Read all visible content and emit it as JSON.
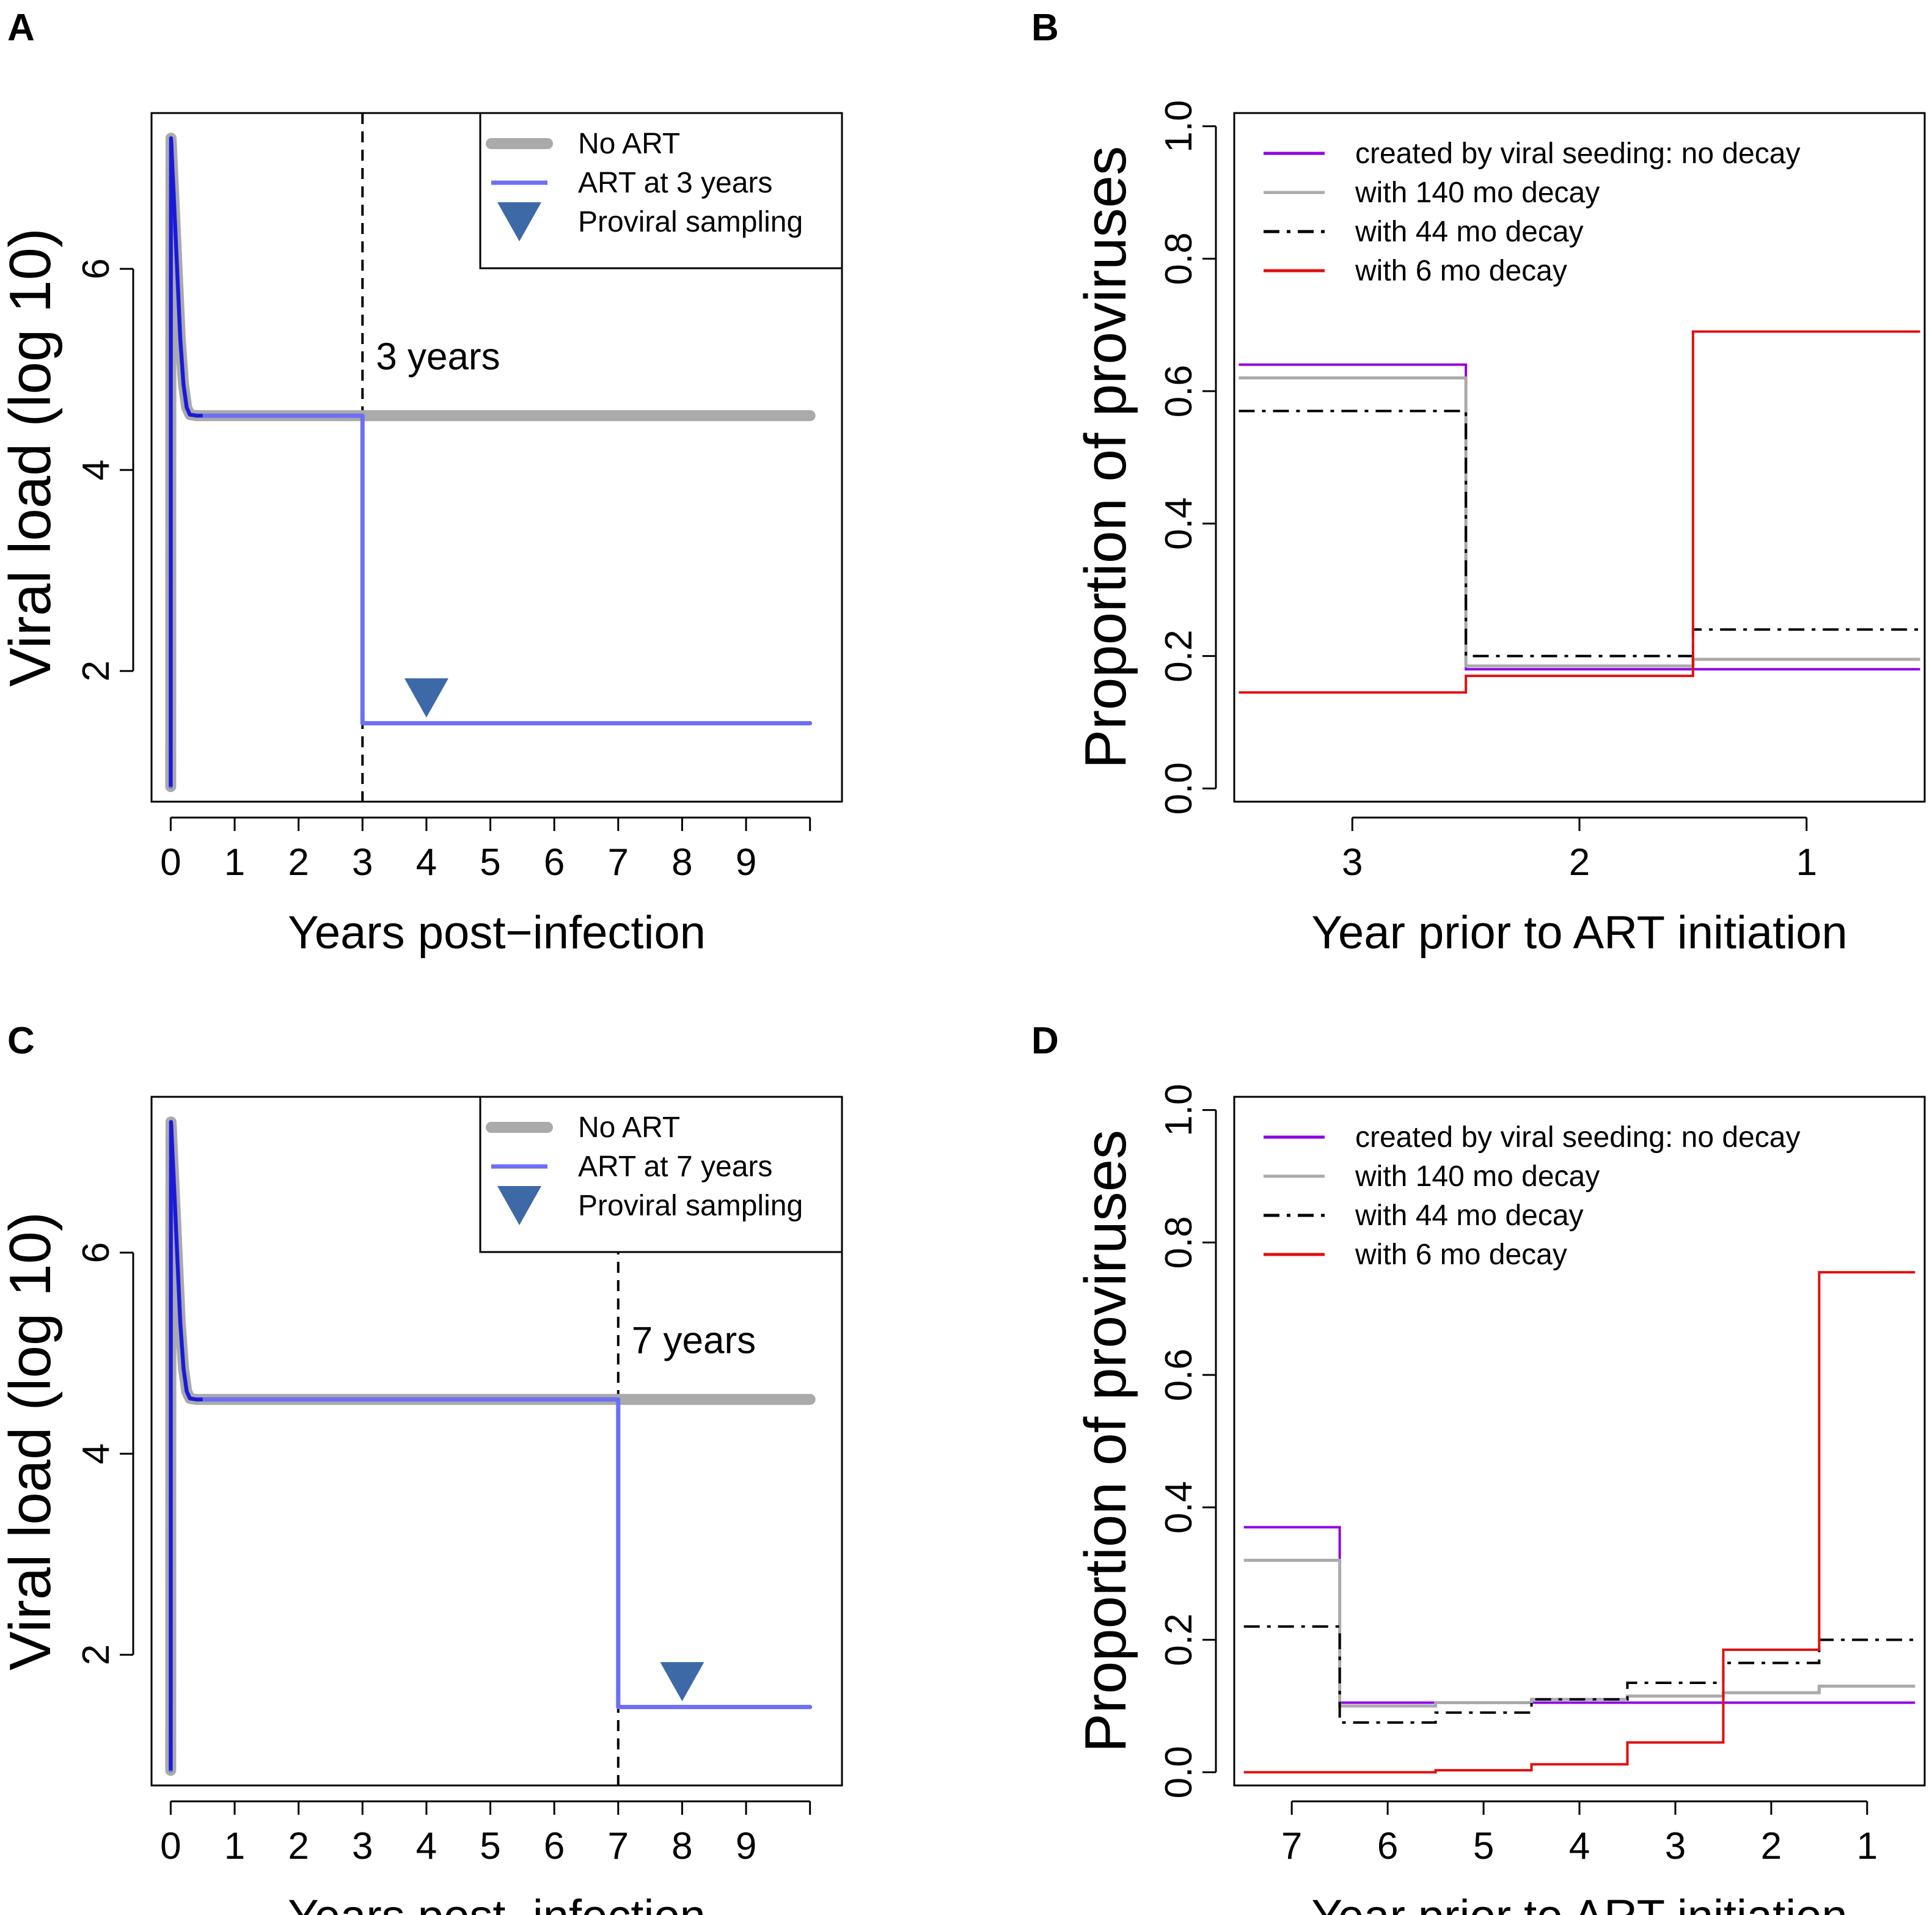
{
  "figure": {
    "panel_letters": [
      "A",
      "B",
      "C",
      "D"
    ]
  },
  "chart_data": [
    {
      "panel": "A",
      "type": "line",
      "xlabel": "Years post−infection",
      "ylabel": "Viral load (log 10)",
      "xlim": [
        -0.3,
        10.5
      ],
      "ylim": [
        0.7,
        7.55
      ],
      "xticks": [
        0,
        1,
        2,
        3,
        4,
        5,
        6,
        7,
        8,
        9
      ],
      "xtick_labels": [
        "0",
        "1",
        "2",
        "3",
        "4",
        "5",
        "6",
        "7",
        "8",
        "9"
      ],
      "yticks": [
        2,
        4,
        6
      ],
      "ytick_labels": [
        "2",
        "4",
        "6"
      ],
      "art_year": 3,
      "annotation": "3 years",
      "sampling_year": 4,
      "sampling_value": 1.72,
      "series": [
        {
          "name": "No ART",
          "color": "#aaaaaa",
          "x": [
            0,
            0.001,
            0.003,
            0.005,
            0.01,
            0.02,
            0.05,
            0.1,
            0.15,
            0.2,
            0.25,
            0.3,
            0.4,
            0.5,
            10
          ],
          "y": [
            0.85,
            3.0,
            6.2,
            7.3,
            7.25,
            7.1,
            6.7,
            6.0,
            5.3,
            4.85,
            4.62,
            4.55,
            4.54,
            4.54,
            4.54
          ]
        },
        {
          "name": "ART at 3 years",
          "color": "#6e6ef5",
          "x": [
            0,
            0.001,
            0.003,
            0.005,
            0.01,
            0.02,
            0.05,
            0.1,
            0.15,
            0.2,
            0.25,
            0.3,
            0.4,
            0.5,
            3.0,
            3.0,
            10
          ],
          "y": [
            0.85,
            3.0,
            6.2,
            7.3,
            7.25,
            7.1,
            6.7,
            6.0,
            5.3,
            4.85,
            4.62,
            4.55,
            4.54,
            4.54,
            4.54,
            1.48,
            1.48
          ]
        }
      ],
      "legend": {
        "placement": "top-right",
        "entries": [
          "No ART",
          "ART at 3 years",
          "Proviral sampling"
        ]
      }
    },
    {
      "panel": "B",
      "type": "line",
      "xlabel": "Year prior to ART initiation",
      "ylabel": "Proportion of proviruses",
      "xlim": [
        3.52,
        0.48
      ],
      "ylim": [
        -0.02,
        1.02
      ],
      "xticks": [
        3,
        2,
        1
      ],
      "xtick_labels": [
        "3",
        "2",
        "1"
      ],
      "yticks": [
        0.0,
        0.2,
        0.4,
        0.6,
        0.8,
        1.0
      ],
      "ytick_labels": [
        "0.0",
        "0.2",
        "0.4",
        "0.6",
        "0.8",
        "1.0"
      ],
      "bins": [
        3,
        2,
        1
      ],
      "series": [
        {
          "name": "created by viral seeding: no decay",
          "color": "#8f00e6",
          "style": "solid",
          "values": [
            0.64,
            0.18,
            0.18
          ]
        },
        {
          "name": "with 140 mo decay",
          "color": "#aaaaaa",
          "style": "solid",
          "values": [
            0.62,
            0.185,
            0.195
          ]
        },
        {
          "name": "with 44 mo decay",
          "color": "#000000",
          "style": "dashdot",
          "values": [
            0.57,
            0.2,
            0.24
          ]
        },
        {
          "name": "with 6 mo decay",
          "color": "#e01010",
          "style": "solid",
          "values": [
            0.145,
            0.17,
            0.69
          ]
        }
      ],
      "legend": {
        "placement": "top-left",
        "entries": [
          "created by viral seeding: no decay",
          "with 140 mo decay",
          "with 44 mo decay",
          "with 6 mo decay"
        ]
      }
    },
    {
      "panel": "C",
      "type": "line",
      "xlabel": "Years post−infection",
      "ylabel": "Viral load (log 10)",
      "xlim": [
        -0.3,
        10.5
      ],
      "ylim": [
        0.7,
        7.55
      ],
      "xticks": [
        0,
        1,
        2,
        3,
        4,
        5,
        6,
        7,
        8,
        9
      ],
      "xtick_labels": [
        "0",
        "1",
        "2",
        "3",
        "4",
        "5",
        "6",
        "7",
        "8",
        "9"
      ],
      "yticks": [
        2,
        4,
        6
      ],
      "ytick_labels": [
        "2",
        "4",
        "6"
      ],
      "art_year": 7,
      "annotation": "7 years",
      "sampling_year": 8,
      "sampling_value": 1.72,
      "series": [
        {
          "name": "No ART",
          "color": "#aaaaaa",
          "x": [
            0,
            0.001,
            0.003,
            0.005,
            0.01,
            0.02,
            0.05,
            0.1,
            0.15,
            0.2,
            0.25,
            0.3,
            0.4,
            0.5,
            10
          ],
          "y": [
            0.85,
            3.0,
            6.2,
            7.3,
            7.25,
            7.1,
            6.7,
            6.0,
            5.3,
            4.85,
            4.62,
            4.55,
            4.54,
            4.54,
            4.54
          ]
        },
        {
          "name": "ART at 7 years",
          "color": "#6e6ef5",
          "x": [
            0,
            0.001,
            0.003,
            0.005,
            0.01,
            0.02,
            0.05,
            0.1,
            0.15,
            0.2,
            0.25,
            0.3,
            0.4,
            0.5,
            7.0,
            7.0,
            10
          ],
          "y": [
            0.85,
            3.0,
            6.2,
            7.3,
            7.25,
            7.1,
            6.7,
            6.0,
            5.3,
            4.85,
            4.62,
            4.55,
            4.54,
            4.54,
            4.54,
            1.48,
            1.48
          ]
        }
      ],
      "legend": {
        "placement": "top-right",
        "entries": [
          "No ART",
          "ART at 7 years",
          "Proviral sampling"
        ]
      }
    },
    {
      "panel": "D",
      "type": "line",
      "xlabel": "Year prior to ART initiation",
      "ylabel": "Proportion of proviruses",
      "xlim": [
        7.6,
        0.4
      ],
      "ylim": [
        -0.02,
        1.02
      ],
      "xticks": [
        7,
        6,
        5,
        4,
        3,
        2,
        1
      ],
      "xtick_labels": [
        "7",
        "6",
        "5",
        "4",
        "3",
        "2",
        "1"
      ],
      "yticks": [
        0.0,
        0.2,
        0.4,
        0.6,
        0.8,
        1.0
      ],
      "ytick_labels": [
        "0.0",
        "0.2",
        "0.4",
        "0.6",
        "0.8",
        "1.0"
      ],
      "bins": [
        7,
        6,
        5,
        4,
        3,
        2,
        1
      ],
      "series": [
        {
          "name": "created by viral seeding: no decay",
          "color": "#8f00e6",
          "style": "solid",
          "values": [
            0.37,
            0.105,
            0.105,
            0.105,
            0.105,
            0.105,
            0.105
          ]
        },
        {
          "name": "with 140 mo decay",
          "color": "#aaaaaa",
          "style": "solid",
          "values": [
            0.32,
            0.1,
            0.105,
            0.11,
            0.115,
            0.12,
            0.13
          ]
        },
        {
          "name": "with 44 mo decay",
          "color": "#000000",
          "style": "dashdot",
          "values": [
            0.22,
            0.075,
            0.09,
            0.11,
            0.135,
            0.165,
            0.2
          ]
        },
        {
          "name": "with 6 mo decay",
          "color": "#e01010",
          "style": "solid",
          "values": [
            0.0,
            0.0,
            0.003,
            0.012,
            0.045,
            0.185,
            0.755
          ]
        }
      ],
      "legend": {
        "placement": "top-left",
        "entries": [
          "created by viral seeding: no decay",
          "with 140 mo decay",
          "with 44 mo decay",
          "with 6 mo decay"
        ]
      }
    }
  ]
}
